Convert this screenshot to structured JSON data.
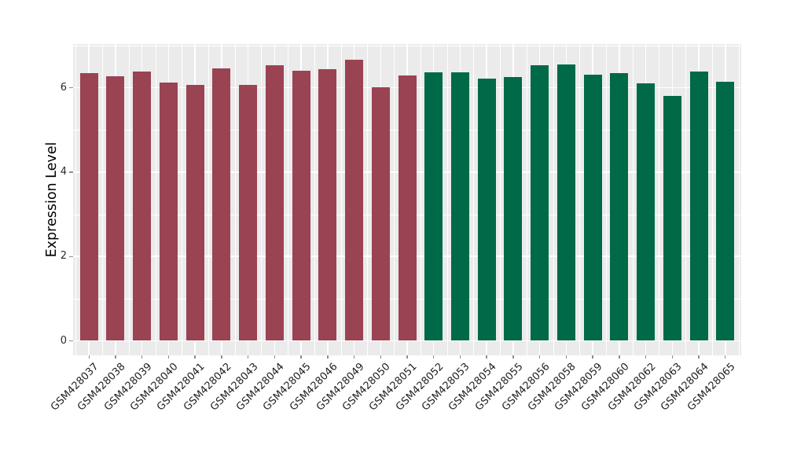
{
  "chart_data": {
    "type": "bar",
    "title": "",
    "xlabel": "",
    "ylabel": "Expression Level",
    "yticks": [
      0,
      2,
      4,
      6
    ],
    "y_minor_ticks": [
      1,
      3,
      5,
      7
    ],
    "ylim": [
      -0.35,
      7.04
    ],
    "legend": "none",
    "grid": "on",
    "panel_background": "#EBEBEB",
    "gridline_color": "#FFFFFF",
    "tick_color": "#8E8E8E",
    "axis_text_color": "#1F1F1F",
    "group_colors": {
      "group1": "#9A4352",
      "group2": "#006948"
    },
    "bars": [
      {
        "label": "GSM428037",
        "value": 6.34,
        "group": "group1"
      },
      {
        "label": "GSM428038",
        "value": 6.28,
        "group": "group1"
      },
      {
        "label": "GSM428039",
        "value": 6.38,
        "group": "group1"
      },
      {
        "label": "GSM428040",
        "value": 6.12,
        "group": "group1"
      },
      {
        "label": "GSM428041",
        "value": 6.07,
        "group": "group1"
      },
      {
        "label": "GSM428042",
        "value": 6.47,
        "group": "group1"
      },
      {
        "label": "GSM428043",
        "value": 6.07,
        "group": "group1"
      },
      {
        "label": "GSM428044",
        "value": 6.54,
        "group": "group1"
      },
      {
        "label": "GSM428045",
        "value": 6.41,
        "group": "group1"
      },
      {
        "label": "GSM428046",
        "value": 6.45,
        "group": "group1"
      },
      {
        "label": "GSM428049",
        "value": 6.67,
        "group": "group1"
      },
      {
        "label": "GSM428050",
        "value": 6.02,
        "group": "group1"
      },
      {
        "label": "GSM428051",
        "value": 6.29,
        "group": "group1"
      },
      {
        "label": "GSM428052",
        "value": 6.36,
        "group": "group2"
      },
      {
        "label": "GSM428053",
        "value": 6.36,
        "group": "group2"
      },
      {
        "label": "GSM428054",
        "value": 6.22,
        "group": "group2"
      },
      {
        "label": "GSM428055",
        "value": 6.26,
        "group": "group2"
      },
      {
        "label": "GSM428056",
        "value": 6.53,
        "group": "group2"
      },
      {
        "label": "GSM428058",
        "value": 6.55,
        "group": "group2"
      },
      {
        "label": "GSM428059",
        "value": 6.32,
        "group": "group2"
      },
      {
        "label": "GSM428060",
        "value": 6.34,
        "group": "group2"
      },
      {
        "label": "GSM428062",
        "value": 6.11,
        "group": "group2"
      },
      {
        "label": "GSM428063",
        "value": 5.8,
        "group": "group2"
      },
      {
        "label": "GSM428064",
        "value": 6.38,
        "group": "group2"
      },
      {
        "label": "GSM428065",
        "value": 6.14,
        "group": "group2"
      }
    ]
  }
}
